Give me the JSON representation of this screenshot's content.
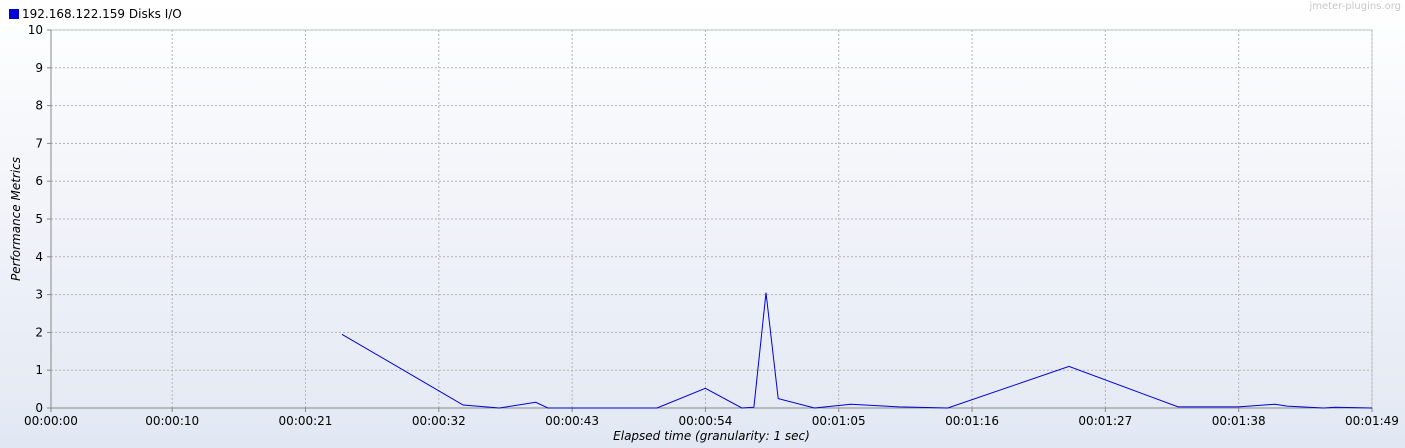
{
  "watermark": "jmeter-plugins.org",
  "chart_data": {
    "type": "line",
    "title": "",
    "xlabel": "Elapsed time (granularity: 1 sec)",
    "ylabel": "Performance Metrics",
    "ylim": [
      0,
      10
    ],
    "xlim": [
      0,
      109
    ],
    "y_ticks": [
      "0",
      "1",
      "2",
      "3",
      "4",
      "5",
      "6",
      "7",
      "8",
      "9",
      "10"
    ],
    "x_ticks": [
      {
        "t": 0,
        "label": "00:00:00"
      },
      {
        "t": 10,
        "label": "00:00:10"
      },
      {
        "t": 21,
        "label": "00:00:21"
      },
      {
        "t": 32,
        "label": "00:00:32"
      },
      {
        "t": 43,
        "label": "00:00:43"
      },
      {
        "t": 54,
        "label": "00:00:54"
      },
      {
        "t": 65,
        "label": "00:01:05"
      },
      {
        "t": 76,
        "label": "00:01:16"
      },
      {
        "t": 87,
        "label": "00:01:27"
      },
      {
        "t": 98,
        "label": "00:01:38"
      },
      {
        "t": 109,
        "label": "00:01:49"
      }
    ],
    "grid": true,
    "legend_position": "top-left",
    "series": [
      {
        "name": "192.168.122.159 Disks I/O",
        "color": "#0000d8",
        "points": [
          [
            24,
            1.95
          ],
          [
            34,
            0.08
          ],
          [
            37,
            0.0
          ],
          [
            40,
            0.15
          ],
          [
            41,
            0.0
          ],
          [
            50,
            0.0
          ],
          [
            54,
            0.52
          ],
          [
            57,
            0.0
          ],
          [
            58,
            0.02
          ],
          [
            59,
            3.05
          ],
          [
            60,
            0.25
          ],
          [
            63,
            0.0
          ],
          [
            66,
            0.1
          ],
          [
            70,
            0.03
          ],
          [
            74,
            0.0
          ],
          [
            84,
            1.1
          ],
          [
            93,
            0.03
          ],
          [
            98,
            0.03
          ],
          [
            101,
            0.1
          ],
          [
            102,
            0.05
          ],
          [
            105,
            0.0
          ],
          [
            106,
            0.02
          ],
          [
            109,
            0.0
          ]
        ]
      }
    ]
  }
}
